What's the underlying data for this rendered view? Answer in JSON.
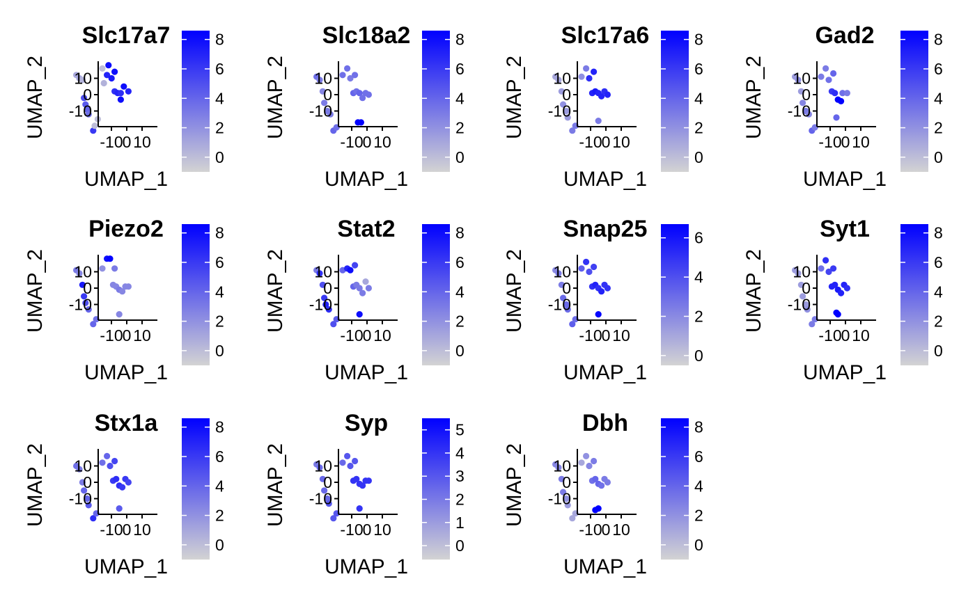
{
  "palette": {
    "low": "#d3d3d3",
    "high": "#0000ff"
  },
  "axes": {
    "xlabel": "UMAP_1",
    "ylabel": "UMAP_2",
    "xticks": [
      "-10",
      "0",
      "10"
    ],
    "yticks": [
      "10",
      "0",
      "-10"
    ]
  },
  "chart_data": [
    {
      "type": "scatter",
      "title": "Slc17a7",
      "xlabel": "UMAP_1",
      "ylabel": "UMAP_2",
      "colorbar_ticks": [
        "0",
        "2",
        "4",
        "6",
        "8"
      ],
      "color_range": [
        -1,
        8.6
      ],
      "points": [
        [
          -17,
          12,
          1
        ],
        [
          -15,
          10,
          1
        ],
        [
          -13,
          9,
          0.5
        ],
        [
          -12,
          -2,
          5
        ],
        [
          -11,
          -6,
          4.5
        ],
        [
          -10,
          -9,
          4
        ],
        [
          -9,
          -12,
          3.5
        ],
        [
          -6,
          -22,
          6
        ],
        [
          -5,
          -19,
          0
        ],
        [
          -3,
          -15,
          0
        ],
        [
          0,
          16,
          0
        ],
        [
          1,
          7,
          0.5
        ],
        [
          3,
          12,
          7
        ],
        [
          4,
          18,
          8
        ],
        [
          6,
          10,
          7.5
        ],
        [
          8,
          14,
          8
        ],
        [
          8,
          2,
          6.5
        ],
        [
          10,
          1,
          7
        ],
        [
          12,
          -3,
          8
        ],
        [
          12,
          1,
          6.5
        ],
        [
          14,
          5,
          8
        ],
        [
          17,
          2,
          7
        ]
      ]
    },
    {
      "type": "scatter",
      "title": "Slc18a2",
      "xlabel": "UMAP_1",
      "ylabel": "UMAP_2",
      "colorbar_ticks": [
        "0",
        "2",
        "4",
        "6",
        "8"
      ],
      "color_range": [
        -1,
        8.6
      ],
      "points": [
        [
          -17,
          11,
          3.5
        ],
        [
          -15,
          9,
          3
        ],
        [
          -13,
          2,
          2.5
        ],
        [
          -12,
          -5,
          3
        ],
        [
          -10,
          -10,
          3
        ],
        [
          -8,
          -12,
          3
        ],
        [
          -6,
          -22,
          4
        ],
        [
          -4,
          -20,
          3.5
        ],
        [
          0,
          12,
          3.5
        ],
        [
          3,
          16,
          3.5
        ],
        [
          5,
          10,
          3
        ],
        [
          8,
          12,
          3.5
        ],
        [
          7,
          1,
          4
        ],
        [
          9,
          2,
          3.5
        ],
        [
          11,
          1,
          4
        ],
        [
          13,
          -2,
          3.5
        ],
        [
          15,
          1,
          3.5
        ],
        [
          17,
          0,
          3.5
        ],
        [
          12,
          -17,
          8.6
        ],
        [
          10,
          -17,
          8.6
        ]
      ]
    },
    {
      "type": "scatter",
      "title": "Slc17a6",
      "xlabel": "UMAP_1",
      "ylabel": "UMAP_2",
      "colorbar_ticks": [
        "0",
        "2",
        "4",
        "6",
        "8"
      ],
      "color_range": [
        -1,
        8.6
      ],
      "points": [
        [
          -17,
          11,
          1
        ],
        [
          -15,
          9,
          1
        ],
        [
          -13,
          2,
          1.5
        ],
        [
          -12,
          -6,
          2
        ],
        [
          -10,
          -10,
          1.5
        ],
        [
          -9,
          -14,
          1.5
        ],
        [
          -6,
          -22,
          3
        ],
        [
          -4,
          -19,
          3
        ],
        [
          0,
          11,
          2
        ],
        [
          3,
          16,
          3
        ],
        [
          5,
          10,
          6.5
        ],
        [
          8,
          14,
          7
        ],
        [
          7,
          1,
          7
        ],
        [
          9,
          2,
          7.5
        ],
        [
          11,
          1,
          7
        ],
        [
          13,
          -1,
          7
        ],
        [
          15,
          2,
          6.5
        ],
        [
          17,
          0,
          7
        ],
        [
          11,
          -16,
          3
        ]
      ]
    },
    {
      "type": "scatter",
      "title": "Gad2",
      "xlabel": "UMAP_1",
      "ylabel": "UMAP_2",
      "colorbar_ticks": [
        "0",
        "2",
        "4",
        "6",
        "8"
      ],
      "color_range": [
        -1,
        8.6
      ],
      "points": [
        [
          -17,
          11,
          1.5
        ],
        [
          -15,
          9,
          2
        ],
        [
          -13,
          2,
          1.5
        ],
        [
          -12,
          -5,
          2.5
        ],
        [
          -10,
          -10,
          3
        ],
        [
          -8,
          -12,
          2.5
        ],
        [
          -6,
          -22,
          4
        ],
        [
          -4,
          -20,
          3
        ],
        [
          0,
          11,
          3
        ],
        [
          3,
          16,
          3
        ],
        [
          5,
          9,
          3.5
        ],
        [
          8,
          13,
          4
        ],
        [
          7,
          2,
          6
        ],
        [
          9,
          1,
          6.5
        ],
        [
          11,
          -3,
          8.6
        ],
        [
          13,
          -4,
          8.6
        ],
        [
          14,
          1,
          3.5
        ],
        [
          17,
          1,
          3
        ],
        [
          10,
          -14,
          4
        ]
      ]
    },
    {
      "type": "scatter",
      "title": "Piezo2",
      "xlabel": "UMAP_1",
      "ylabel": "UMAP_2",
      "colorbar_ticks": [
        "0",
        "2",
        "4",
        "6",
        "8"
      ],
      "color_range": [
        -1,
        8.6
      ],
      "points": [
        [
          -17,
          11,
          3
        ],
        [
          -15,
          9,
          2.5
        ],
        [
          -13,
          2,
          7.5
        ],
        [
          -12,
          -5,
          6
        ],
        [
          -11,
          -9,
          5
        ],
        [
          -9,
          -13,
          4
        ],
        [
          -6,
          -22,
          4
        ],
        [
          -4,
          -19,
          3.5
        ],
        [
          0,
          12,
          2
        ],
        [
          3,
          18,
          8
        ],
        [
          5,
          18,
          8.5
        ],
        [
          8,
          12,
          3
        ],
        [
          7,
          2,
          2.5
        ],
        [
          9,
          1,
          2.5
        ],
        [
          11,
          -1,
          3
        ],
        [
          13,
          -2,
          2.5
        ],
        [
          15,
          1,
          2.5
        ],
        [
          17,
          1,
          2.5
        ],
        [
          11,
          -16,
          2.5
        ]
      ]
    },
    {
      "type": "scatter",
      "title": "Stat2",
      "xlabel": "UMAP_1",
      "ylabel": "UMAP_2",
      "colorbar_ticks": [
        "0",
        "2",
        "4",
        "6",
        "8"
      ],
      "color_range": [
        -1,
        8.6
      ],
      "points": [
        [
          -17,
          11,
          3
        ],
        [
          -15,
          9,
          6.5
        ],
        [
          -13,
          2,
          5
        ],
        [
          -12,
          -6,
          6
        ],
        [
          -11,
          -10,
          7
        ],
        [
          -9,
          -13,
          6.5
        ],
        [
          -6,
          -22,
          5
        ],
        [
          -4,
          -19,
          4.5
        ],
        [
          0,
          11,
          4
        ],
        [
          3,
          12,
          7
        ],
        [
          5,
          11,
          8
        ],
        [
          8,
          14,
          5.5
        ],
        [
          7,
          1,
          4
        ],
        [
          9,
          2,
          3
        ],
        [
          11,
          0,
          3
        ],
        [
          13,
          -3,
          3
        ],
        [
          15,
          4,
          1
        ],
        [
          17,
          0,
          3
        ],
        [
          11,
          -16,
          8
        ]
      ]
    },
    {
      "type": "scatter",
      "title": "Snap25",
      "xlabel": "UMAP_1",
      "ylabel": "UMAP_2",
      "colorbar_ticks": [
        "0",
        "2",
        "4",
        "6"
      ],
      "color_range": [
        -0.5,
        6.7
      ],
      "points": [
        [
          -17,
          11,
          2
        ],
        [
          -15,
          9,
          2.5
        ],
        [
          -13,
          2,
          2.5
        ],
        [
          -12,
          -6,
          3
        ],
        [
          -10,
          -10,
          3
        ],
        [
          -9,
          -13,
          3
        ],
        [
          -6,
          -22,
          3.5
        ],
        [
          -4,
          -19,
          3
        ],
        [
          0,
          12,
          3.5
        ],
        [
          3,
          16,
          5
        ],
        [
          5,
          10,
          4
        ],
        [
          8,
          13,
          4.5
        ],
        [
          7,
          1,
          5
        ],
        [
          9,
          2,
          5.5
        ],
        [
          11,
          0,
          5
        ],
        [
          13,
          -2,
          5.5
        ],
        [
          15,
          2,
          5
        ],
        [
          17,
          0,
          5
        ],
        [
          11,
          -16,
          6.5
        ]
      ]
    },
    {
      "type": "scatter",
      "title": "Syt1",
      "xlabel": "UMAP_1",
      "ylabel": "UMAP_2",
      "colorbar_ticks": [
        "0",
        "2",
        "4",
        "6",
        "8"
      ],
      "color_range": [
        -1,
        8.6
      ],
      "points": [
        [
          -17,
          11,
          1.5
        ],
        [
          -15,
          9,
          1.5
        ],
        [
          -13,
          2,
          1.5
        ],
        [
          -12,
          -5,
          1.5
        ],
        [
          -10,
          -10,
          1.5
        ],
        [
          -9,
          -13,
          2
        ],
        [
          -6,
          -22,
          3
        ],
        [
          -4,
          -19,
          3
        ],
        [
          0,
          12,
          3.5
        ],
        [
          3,
          17,
          6.5
        ],
        [
          5,
          10,
          5.5
        ],
        [
          8,
          12,
          6
        ],
        [
          7,
          1,
          7
        ],
        [
          9,
          2,
          7
        ],
        [
          11,
          -1,
          7.5
        ],
        [
          13,
          -3,
          7
        ],
        [
          15,
          2,
          7
        ],
        [
          17,
          0,
          6.5
        ],
        [
          11,
          -16,
          8.6
        ],
        [
          10,
          -15,
          8.6
        ]
      ]
    },
    {
      "type": "scatter",
      "title": "Stx1a",
      "xlabel": "UMAP_1",
      "ylabel": "UMAP_2",
      "colorbar_ticks": [
        "0",
        "2",
        "4",
        "6",
        "8"
      ],
      "color_range": [
        -1,
        8.6
      ],
      "points": [
        [
          -17,
          10,
          3.5
        ],
        [
          -15,
          8,
          3
        ],
        [
          -13,
          0,
          3
        ],
        [
          -12,
          -5,
          4
        ],
        [
          -10,
          -10,
          4
        ],
        [
          -9,
          -14,
          4.5
        ],
        [
          -6,
          -22,
          6.5
        ],
        [
          -4,
          -19,
          4
        ],
        [
          0,
          12,
          3.5
        ],
        [
          3,
          16,
          4
        ],
        [
          5,
          10,
          5
        ],
        [
          8,
          13,
          5.5
        ],
        [
          7,
          1,
          6
        ],
        [
          9,
          2,
          6.5
        ],
        [
          11,
          -2,
          6.5
        ],
        [
          13,
          -3,
          6
        ],
        [
          15,
          2,
          6
        ],
        [
          17,
          0,
          5.5
        ],
        [
          11,
          -16,
          4.5
        ]
      ]
    },
    {
      "type": "scatter",
      "title": "Syp",
      "xlabel": "UMAP_1",
      "ylabel": "UMAP_2",
      "colorbar_ticks": [
        "0",
        "1",
        "2",
        "3",
        "4",
        "5"
      ],
      "color_range": [
        -0.6,
        5.5
      ],
      "points": [
        [
          -17,
          11,
          2
        ],
        [
          -15,
          9,
          2.5
        ],
        [
          -13,
          2,
          2.5
        ],
        [
          -12,
          -5,
          2.5
        ],
        [
          -10,
          -10,
          2.5
        ],
        [
          -9,
          -13,
          3
        ],
        [
          -6,
          -22,
          3
        ],
        [
          -4,
          -19,
          3
        ],
        [
          0,
          12,
          2.5
        ],
        [
          3,
          16,
          3
        ],
        [
          5,
          10,
          3
        ],
        [
          8,
          13,
          3
        ],
        [
          7,
          1,
          4
        ],
        [
          9,
          2,
          4
        ],
        [
          11,
          -1,
          4
        ],
        [
          13,
          -2,
          4
        ],
        [
          15,
          1,
          4
        ],
        [
          17,
          1,
          4
        ],
        [
          11,
          -16,
          4
        ]
      ]
    },
    {
      "type": "scatter",
      "title": "Dbh",
      "xlabel": "UMAP_1",
      "ylabel": "UMAP_2",
      "colorbar_ticks": [
        "0",
        "2",
        "4",
        "6",
        "8"
      ],
      "color_range": [
        -1,
        8.6
      ],
      "points": [
        [
          -17,
          11,
          2.5
        ],
        [
          -15,
          9,
          2.5
        ],
        [
          -13,
          2,
          3
        ],
        [
          -12,
          -6,
          3
        ],
        [
          -10,
          -10,
          2
        ],
        [
          -9,
          -14,
          1.5
        ],
        [
          -6,
          -22,
          1
        ],
        [
          -4,
          -19,
          1
        ],
        [
          0,
          12,
          1
        ],
        [
          3,
          16,
          2
        ],
        [
          5,
          10,
          2.5
        ],
        [
          8,
          13,
          3
        ],
        [
          7,
          1,
          3.5
        ],
        [
          9,
          2,
          4
        ],
        [
          11,
          -1,
          4
        ],
        [
          13,
          -2,
          3.5
        ],
        [
          15,
          2,
          3
        ],
        [
          17,
          0,
          3
        ],
        [
          11,
          -16,
          8.6
        ],
        [
          9,
          -17,
          8.6
        ]
      ]
    }
  ]
}
